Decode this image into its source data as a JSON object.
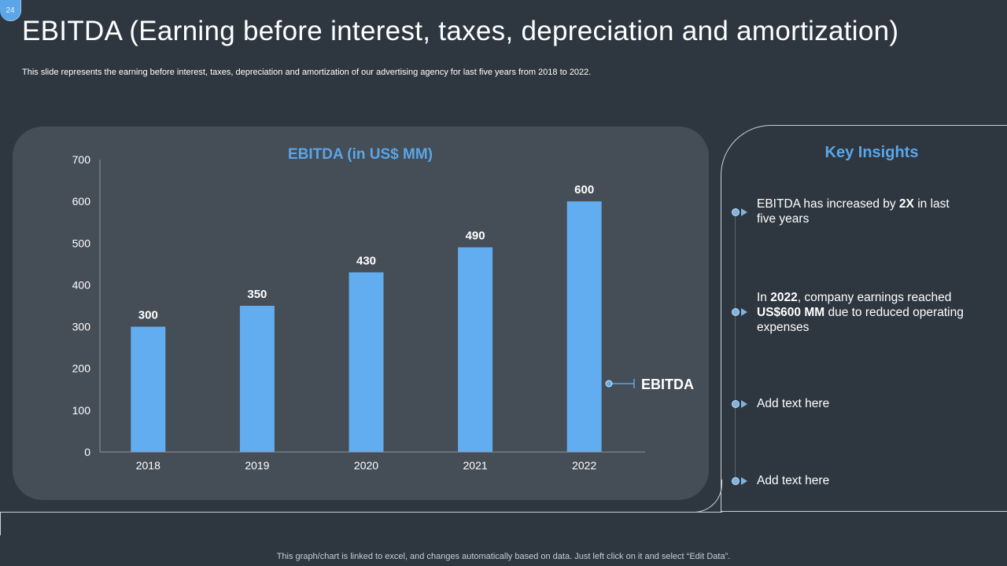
{
  "slide": {
    "page_number": "24",
    "title": "EBITDA (Earning before interest, taxes, depreciation and amortization)",
    "subtitle": "This slide represents the earning before interest, taxes, depreciation and amortization of our advertising agency for last five years from 2018 to  2022.",
    "footer": "This graph/chart is linked to excel,  and changes automatically based on data. Just left click on it and select “Edit Data”."
  },
  "insights": {
    "title": "Key Insights",
    "items": [
      {
        "parts": [
          "EBITDA has increased by ",
          "2X",
          " in last five years"
        ]
      },
      {
        "parts": [
          "In ",
          "2022",
          ", company earnings reached ",
          "US$600 MM",
          " due to reduced operating expenses"
        ]
      },
      {
        "parts": [
          "Add text here"
        ]
      },
      {
        "parts": [
          "Add text here"
        ]
      }
    ]
  },
  "colors": {
    "background": "#2e3740",
    "panel": "#454d56",
    "accent": "#5aa6e8",
    "bar": "#62adf0"
  },
  "chart_data": {
    "type": "bar",
    "title": "EBITDA (in US$ MM)",
    "categories": [
      "2018",
      "2019",
      "2020",
      "2021",
      "2022"
    ],
    "series": [
      {
        "name": "EBITDA",
        "values": [
          300,
          350,
          430,
          490,
          600
        ]
      }
    ],
    "ylim": [
      0,
      700
    ],
    "yticks": [
      0,
      100,
      200,
      300,
      400,
      500,
      600,
      700
    ],
    "grid": false,
    "legend": "right"
  }
}
